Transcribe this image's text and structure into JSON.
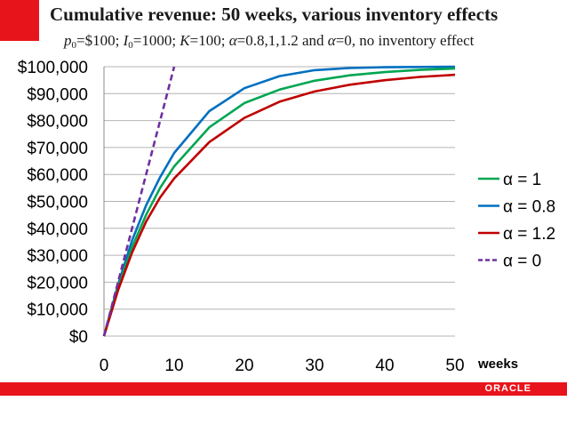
{
  "header": {
    "title": "Cumulative revenue:   50 weeks, various inventory effects",
    "subtitle": {
      "p_sym": "p",
      "p_sub": "0",
      "p_val": "=$100; ",
      "i_sym": "I",
      "i_sub": "0",
      "i_val": "=1000; ",
      "k_sym": "K",
      "k_val": "=100; ",
      "a_sym": "α",
      "a_val": "=0.8,1,1.2 and ",
      "a2_sym": "α",
      "a2_val": "=0, no inventory effect"
    }
  },
  "chart_data": {
    "type": "line",
    "title": "Cumulative revenue:   50 weeks, various inventory effects",
    "xlabel": "weeks",
    "ylabel": "",
    "xlim": [
      0,
      50
    ],
    "ylim": [
      0,
      100000
    ],
    "x_ticks": [
      "0",
      "10",
      "20",
      "30",
      "40",
      "50"
    ],
    "x_tick_values": [
      0,
      10,
      20,
      30,
      40,
      50
    ],
    "y_ticks": [
      "$0",
      "$10,000",
      "$20,000",
      "$30,000",
      "$40,000",
      "$50,000",
      "$60,000",
      "$70,000",
      "$80,000",
      "$90,000",
      "$100,000"
    ],
    "y_tick_values": [
      0,
      10000,
      20000,
      30000,
      40000,
      50000,
      60000,
      70000,
      80000,
      90000,
      100000
    ],
    "grid": true,
    "legend_position": "right",
    "x": [
      0,
      2,
      4,
      6,
      8,
      10,
      15,
      20,
      25,
      30,
      35,
      40,
      45,
      50
    ],
    "series": [
      {
        "name": "α = 1",
        "color": "#00a651",
        "style": "solid",
        "values": [
          0,
          18000,
          33000,
          45000,
          55000,
          63000,
          77500,
          86500,
          91500,
          94800,
          96800,
          98000,
          98800,
          99300
        ]
      },
      {
        "name": "α = 0.8",
        "color": "#0070c0",
        "style": "solid",
        "values": [
          0,
          19000,
          35500,
          48500,
          59000,
          68000,
          83500,
          92000,
          96500,
          98700,
          99500,
          99800,
          99900,
          100000
        ]
      },
      {
        "name": "α = 1.2",
        "color": "#c00000",
        "style": "solid",
        "values": [
          0,
          17000,
          31000,
          42500,
          51500,
          58500,
          72000,
          81000,
          87000,
          90800,
          93300,
          95000,
          96200,
          97000
        ]
      },
      {
        "name": "α = 0",
        "color": "#7030a0",
        "style": "dashed",
        "x": [
          0,
          10
        ],
        "values": [
          0,
          100000
        ]
      }
    ]
  },
  "footer": {
    "logo_text": "ORACLE"
  },
  "colors": {
    "brand_red": "#e8141b"
  }
}
